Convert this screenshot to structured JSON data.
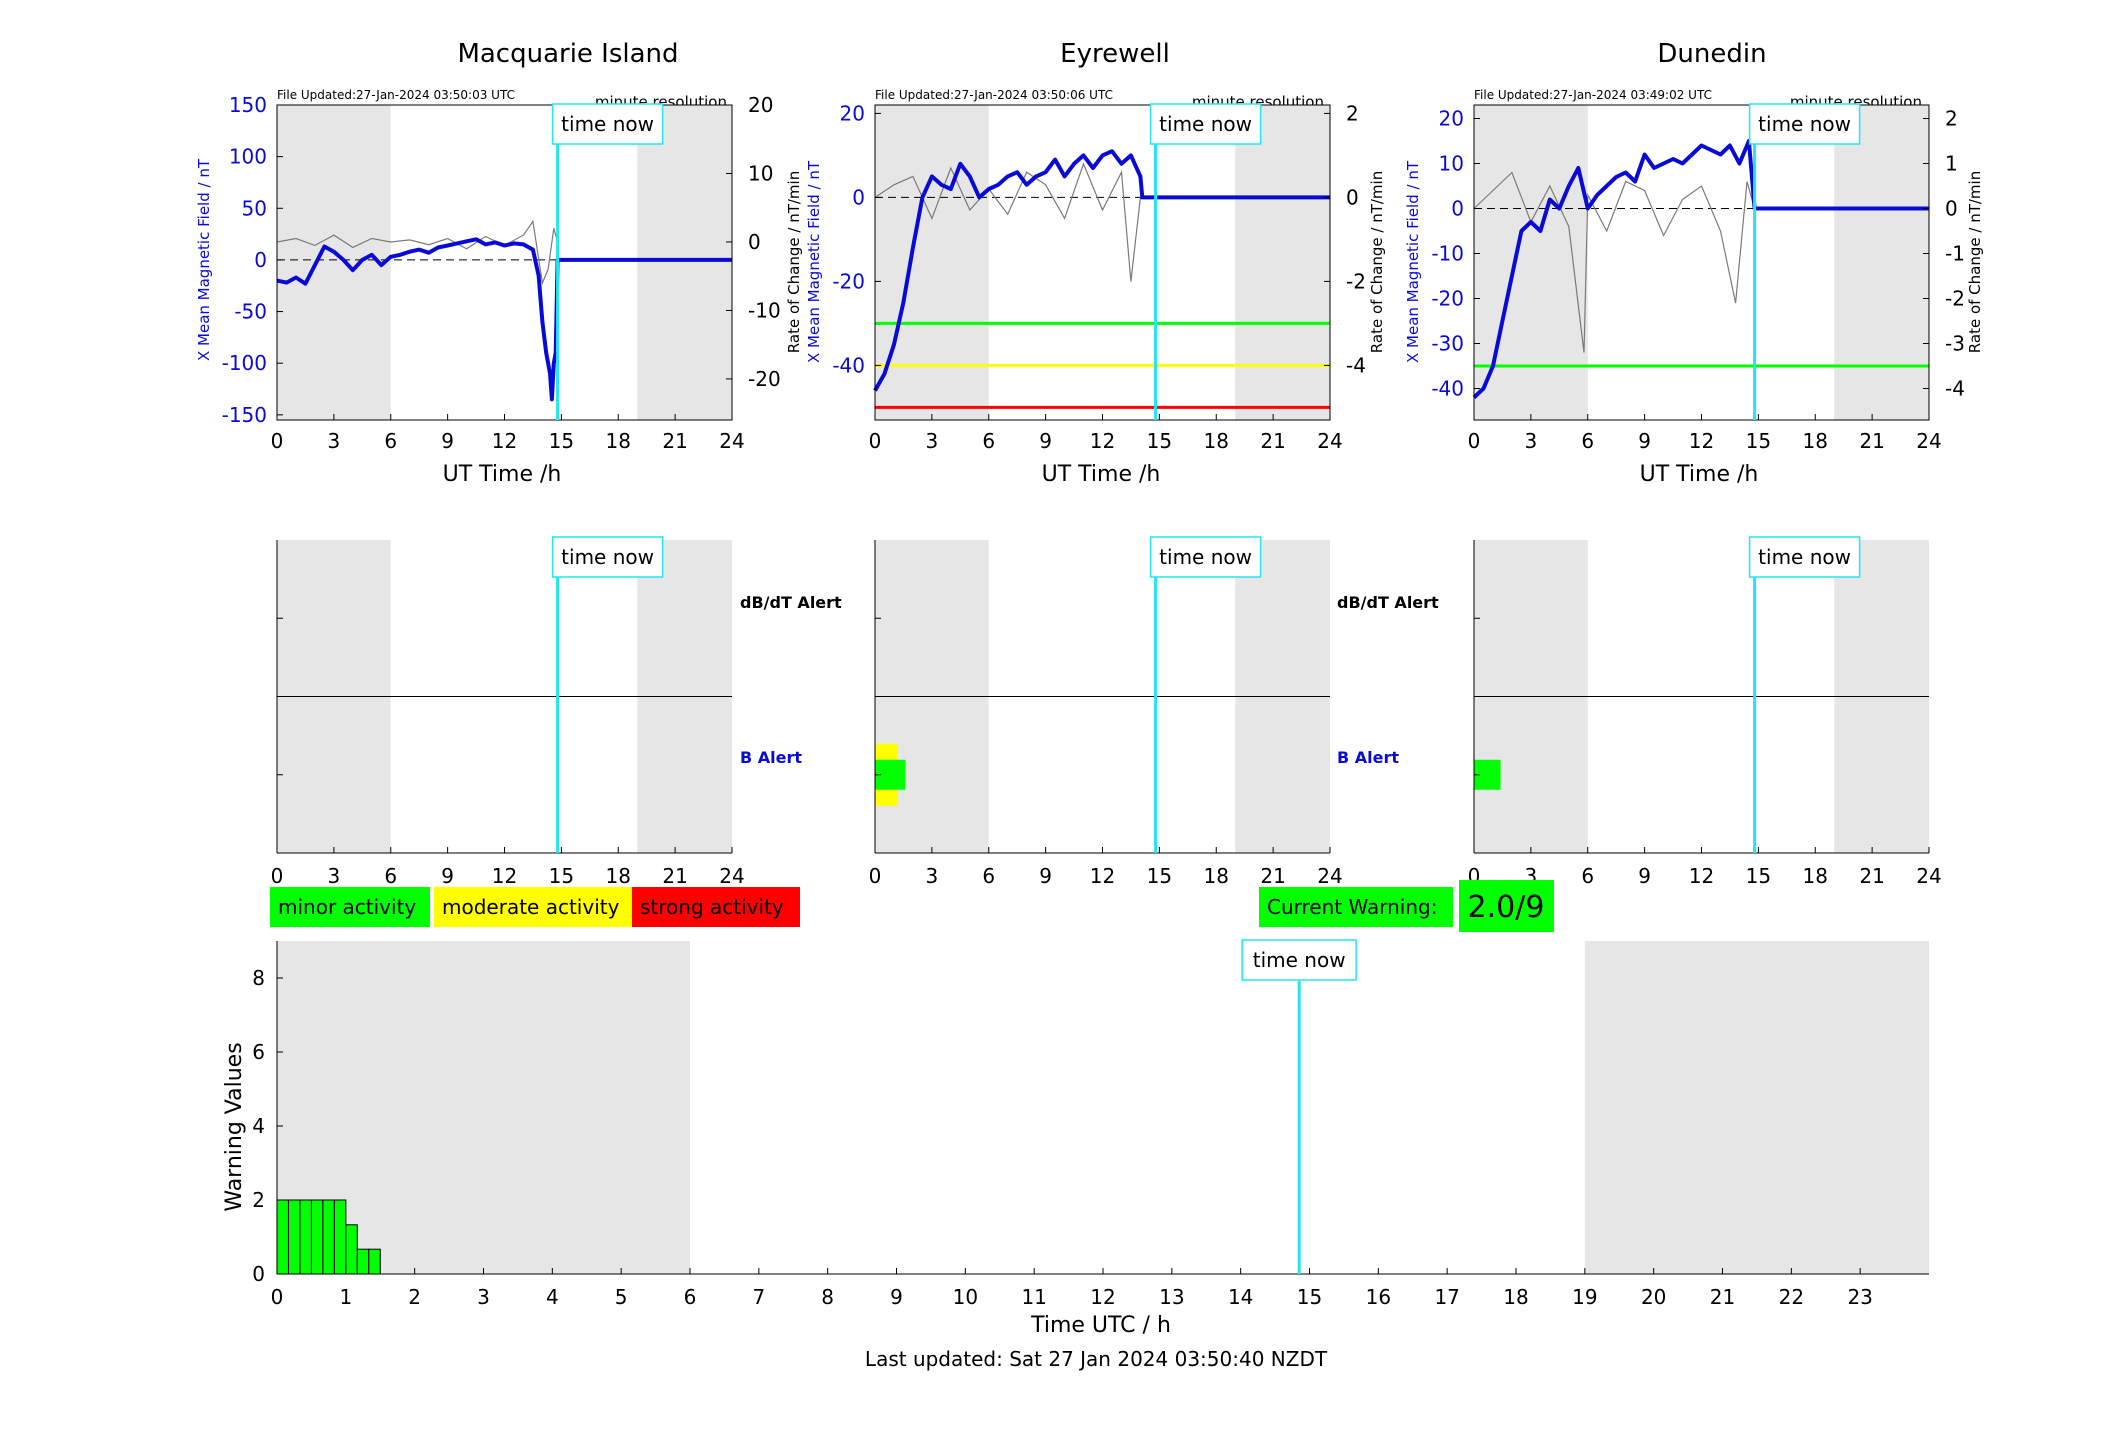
{
  "colors": {
    "blue": "#0a0ad8",
    "cyan": "#22e6f2",
    "green": "#00ff00",
    "yellow": "#ffff00",
    "red": "#ff0000",
    "shade": "#e6e6e6",
    "grey_trace": "#7a7a7a"
  },
  "legend": {
    "minor": "minor activity",
    "moderate": "moderate activity",
    "strong": "strong activity"
  },
  "current_warning": {
    "label": "Current Warning:",
    "value": "2.0/9"
  },
  "footer": {
    "last_updated": "Last updated: Sat 27 Jan 2024 03:50:40 NZDT"
  },
  "alert_labels": {
    "dbdt": "dB/dT Alert",
    "b": "B Alert"
  },
  "time_now_label": "time now",
  "chart_data": [
    {
      "type": "line",
      "title": "Macquarie Island",
      "file_updated": "File Updated:27-Jan-2024 03:50:03 UTC",
      "resolution": "minute resolution",
      "xlabel": "UT Time /h",
      "ylabel_left": "X Mean Magnetic Field / nT",
      "ylabel_right": "Rate of Change / nT/min",
      "xlim": [
        0,
        24
      ],
      "ylim": [
        -155,
        150
      ],
      "y2lim": [
        -26,
        20
      ],
      "xticks": [
        0,
        3,
        6,
        9,
        12,
        15,
        18,
        21,
        24
      ],
      "yticks": [
        -150,
        -100,
        -50,
        0,
        50,
        100,
        150
      ],
      "y2ticks": [
        -20,
        -10,
        0,
        10,
        20
      ],
      "night_bands": [
        [
          0,
          6
        ],
        [
          19,
          24
        ]
      ],
      "time_now": 14.8,
      "thresholds": [],
      "series": [
        {
          "x": [
            0,
            0.5,
            1,
            1.5,
            2,
            2.5,
            3,
            3.5,
            4,
            4.5,
            5,
            5.5,
            6,
            6.5,
            7,
            7.5,
            8,
            8.5,
            9,
            9.5,
            10,
            10.5,
            11,
            11.5,
            12,
            12.5,
            13,
            13.5,
            13.8,
            14.0,
            14.2,
            14.4,
            14.5,
            14.6,
            14.7,
            14.8,
            15,
            18,
            24
          ],
          "y": [
            -20,
            -22,
            -17,
            -23,
            -5,
            13,
            8,
            0,
            -10,
            0,
            5,
            -5,
            3,
            5,
            8,
            10,
            7,
            12,
            14,
            16,
            18,
            20,
            15,
            17,
            14,
            16,
            15,
            10,
            -15,
            -60,
            -90,
            -110,
            -135,
            -100,
            -90,
            0,
            0,
            0,
            0
          ]
        }
      ],
      "rate_series": {
        "x": [
          0,
          1,
          2,
          3,
          4,
          5,
          6,
          7,
          8,
          9,
          10,
          11,
          12,
          13,
          13.5,
          14,
          14.3,
          14.6,
          14.8
        ],
        "y": [
          0,
          0.5,
          -0.5,
          1,
          -0.8,
          0.5,
          0,
          0.3,
          -0.4,
          0.5,
          -1,
          0.8,
          -0.5,
          1,
          3,
          -6,
          -4,
          2,
          0
        ]
      }
    },
    {
      "type": "line",
      "title": "Eyrewell",
      "file_updated": "File Updated:27-Jan-2024 03:50:06 UTC",
      "resolution": "minute resolution",
      "xlabel": "UT Time /h",
      "ylabel_left": "X Mean Magnetic Field / nT",
      "ylabel_right": "Rate of Change / nT/min",
      "xlim": [
        0,
        24
      ],
      "ylim": [
        -53,
        22
      ],
      "y2lim": [
        -5.3,
        2.2
      ],
      "xticks": [
        0,
        3,
        6,
        9,
        12,
        15,
        18,
        21,
        24
      ],
      "yticks": [
        -40,
        -20,
        0,
        20
      ],
      "y2ticks": [
        -4,
        -2,
        0,
        2
      ],
      "night_bands": [
        [
          0,
          6
        ],
        [
          19,
          24
        ]
      ],
      "time_now": 14.8,
      "thresholds": [
        {
          "y": -30,
          "color": "#00ff00"
        },
        {
          "y": -40,
          "color": "#ffff00"
        },
        {
          "y": -50,
          "color": "#ff0000"
        }
      ],
      "series": [
        {
          "x": [
            0,
            0.5,
            1,
            1.5,
            2,
            2.5,
            3,
            3.5,
            4,
            4.5,
            5,
            5.5,
            6,
            6.5,
            7,
            7.5,
            8,
            8.5,
            9,
            9.5,
            10,
            10.5,
            11,
            11.5,
            12,
            12.5,
            13,
            13.5,
            14,
            14.1,
            15,
            18,
            24
          ],
          "y": [
            -46,
            -42,
            -35,
            -25,
            -12,
            0,
            5,
            3,
            2,
            8,
            5,
            0,
            2,
            3,
            5,
            6,
            3,
            5,
            6,
            9,
            5,
            8,
            10,
            7,
            10,
            11,
            8,
            10,
            5,
            0,
            0,
            0,
            0
          ]
        }
      ],
      "rate_series": {
        "x": [
          0,
          1,
          2,
          3,
          4,
          5,
          6,
          7,
          8,
          9,
          10,
          11,
          12,
          13,
          13.5,
          14
        ],
        "y": [
          0,
          0.3,
          0.5,
          -0.5,
          0.7,
          -0.3,
          0.2,
          -0.4,
          0.6,
          0.3,
          -0.5,
          0.8,
          -0.3,
          0.6,
          -2,
          0
        ]
      }
    },
    {
      "type": "line",
      "title": "Dunedin",
      "file_updated": "File Updated:27-Jan-2024 03:49:02 UTC",
      "resolution": "minute resolution",
      "xlabel": "UT Time /h",
      "ylabel_left": "X Mean Magnetic Field / nT",
      "ylabel_right": "Rate of Change / nT/min",
      "xlim": [
        0,
        24
      ],
      "ylim": [
        -47,
        23
      ],
      "y2lim": [
        -4.7,
        2.3
      ],
      "xticks": [
        0,
        3,
        6,
        9,
        12,
        15,
        18,
        21,
        24
      ],
      "yticks": [
        -40,
        -30,
        -20,
        -10,
        0,
        10,
        20
      ],
      "y2ticks": [
        -4,
        -3,
        -2,
        -1,
        0,
        1,
        2
      ],
      "night_bands": [
        [
          0,
          6
        ],
        [
          19,
          24
        ]
      ],
      "time_now": 14.8,
      "thresholds": [
        {
          "y": -35,
          "color": "#00ff00"
        }
      ],
      "series": [
        {
          "x": [
            0,
            0.5,
            1,
            1.5,
            2,
            2.5,
            3,
            3.5,
            4,
            4.5,
            5,
            5.5,
            6,
            6.5,
            7,
            7.5,
            8,
            8.5,
            9,
            9.5,
            10,
            10.5,
            11,
            11.5,
            12,
            12.5,
            13,
            13.5,
            14,
            14.5,
            14.8,
            15,
            18,
            24
          ],
          "y": [
            -42,
            -40,
            -35,
            -25,
            -15,
            -5,
            -3,
            -5,
            2,
            0,
            5,
            9,
            0,
            3,
            5,
            7,
            8,
            6,
            12,
            9,
            10,
            11,
            10,
            12,
            14,
            13,
            12,
            14,
            10,
            15,
            0,
            0,
            0,
            0
          ]
        }
      ],
      "rate_series": {
        "x": [
          0,
          1,
          2,
          3,
          4,
          5,
          5.8,
          6,
          7,
          8,
          9,
          10,
          11,
          12,
          13,
          13.8,
          14.4,
          14.8
        ],
        "y": [
          0,
          0.4,
          0.8,
          -0.3,
          0.5,
          -0.4,
          -3.2,
          0.3,
          -0.5,
          0.6,
          0.4,
          -0.6,
          0.2,
          0.5,
          -0.5,
          -2.1,
          0.6,
          0
        ]
      }
    }
  ],
  "alert_panels": [
    {
      "night_bands": [
        [
          0,
          6
        ],
        [
          19,
          24
        ]
      ],
      "time_now": 14.8,
      "b_alert_bars": []
    },
    {
      "night_bands": [
        [
          0,
          6
        ],
        [
          19,
          24
        ]
      ],
      "time_now": 14.8,
      "b_alert_bars": [
        {
          "x0": 0,
          "x1": 1.2,
          "level": "moderate"
        },
        {
          "x0": 0,
          "x1": 1.6,
          "level": "minor"
        }
      ]
    },
    {
      "night_bands": [
        [
          0,
          6
        ],
        [
          19,
          24
        ]
      ],
      "time_now": 14.8,
      "b_alert_bars": [
        {
          "x0": 0,
          "x1": 1.4,
          "level": "minor"
        }
      ]
    }
  ],
  "warning_chart": {
    "type": "bar",
    "xlabel": "Time UTC / h",
    "ylabel": "Warning Values",
    "xlim": [
      0,
      24
    ],
    "ylim": [
      0,
      9
    ],
    "xticks": [
      0,
      1,
      2,
      3,
      4,
      5,
      6,
      7,
      8,
      9,
      10,
      11,
      12,
      13,
      14,
      15,
      16,
      17,
      18,
      19,
      20,
      21,
      22,
      23
    ],
    "yticks": [
      0,
      2,
      4,
      6,
      8
    ],
    "night_bands": [
      [
        0,
        6
      ],
      [
        19,
        24
      ]
    ],
    "time_now": 14.85,
    "bars": [
      {
        "x": 0.083,
        "value": 2
      },
      {
        "x": 0.25,
        "value": 2
      },
      {
        "x": 0.417,
        "value": 2
      },
      {
        "x": 0.583,
        "value": 2
      },
      {
        "x": 0.75,
        "value": 2
      },
      {
        "x": 0.917,
        "value": 2
      },
      {
        "x": 1.083,
        "value": 1.33
      },
      {
        "x": 1.25,
        "value": 0.67
      },
      {
        "x": 1.417,
        "value": 0.67
      }
    ],
    "bar_width": 0.1667
  }
}
